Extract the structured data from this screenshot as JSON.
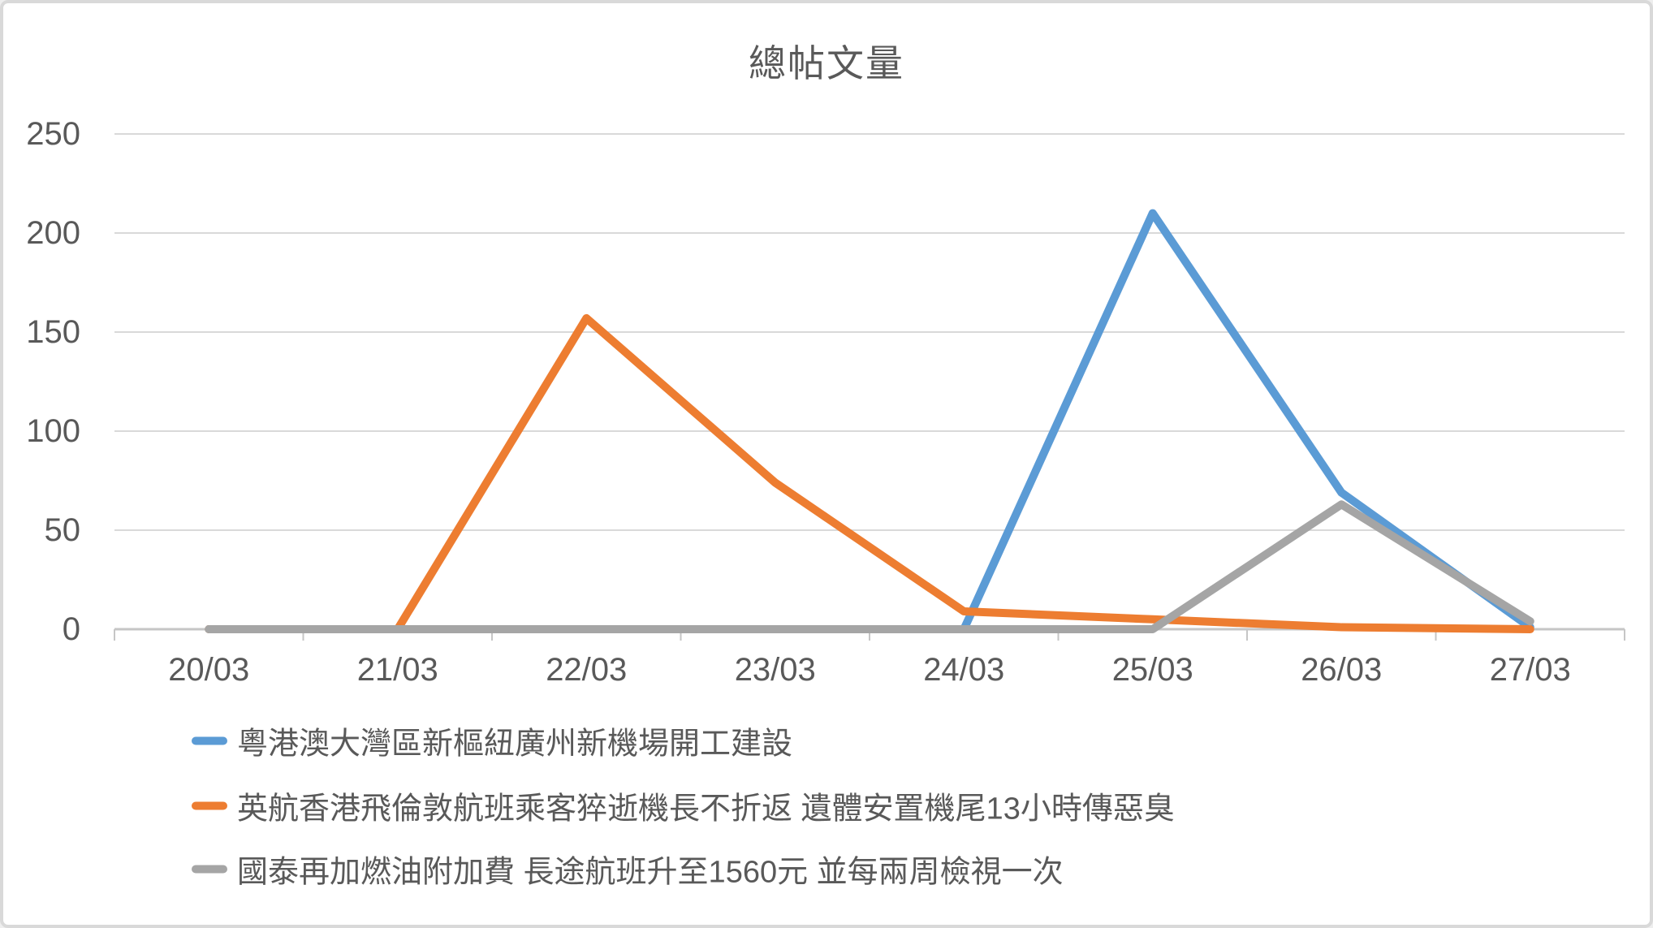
{
  "chart_data": {
    "type": "line",
    "title": "總帖文量",
    "categories": [
      "20/03",
      "21/03",
      "22/03",
      "23/03",
      "24/03",
      "25/03",
      "26/03",
      "27/03"
    ],
    "series": [
      {
        "name": "粵港澳大灣區新樞紐廣州新機場開工建設",
        "color": "#5B9BD5",
        "values": [
          0,
          0,
          0,
          0,
          0,
          210,
          69,
          1
        ]
      },
      {
        "name": "英航香港飛倫敦航班乘客猝逝機長不折返 遺體安置機尾13小時傳惡臭",
        "color": "#ED7D31",
        "values": [
          0,
          0,
          157,
          74,
          9,
          5,
          1,
          0
        ]
      },
      {
        "name": "國泰再加燃油附加費 長途航班升至1560元 並每兩周檢視一次",
        "color": "#A5A5A5",
        "values": [
          0,
          0,
          0,
          0,
          0,
          0,
          63,
          4
        ]
      }
    ],
    "xlabel": "",
    "ylabel": "",
    "ylim": [
      0,
      250
    ],
    "yticks": [
      0,
      50,
      100,
      150,
      200,
      250
    ],
    "grid": true,
    "legend_position": "bottom-left",
    "gridline_color": "#D9D9D9",
    "axis_color": "#C6C6C6",
    "text_color": "#595959",
    "background_color": "#FFFFFF"
  }
}
